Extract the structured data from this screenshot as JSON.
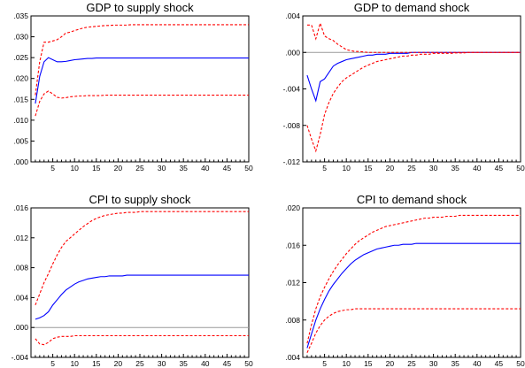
{
  "chart_data": [
    {
      "type": "line",
      "title": "GDP to supply shock",
      "x": [
        1,
        2,
        3,
        4,
        5,
        6,
        7,
        8,
        9,
        10,
        11,
        12,
        13,
        14,
        15,
        16,
        17,
        18,
        19,
        20,
        21,
        22,
        23,
        24,
        25,
        26,
        27,
        28,
        29,
        30,
        31,
        32,
        33,
        34,
        35,
        36,
        37,
        38,
        39,
        40,
        41,
        42,
        43,
        44,
        45,
        46,
        47,
        48,
        49,
        50
      ],
      "xlim": [
        0,
        50
      ],
      "xticks": [
        "5",
        "10",
        "15",
        "20",
        "25",
        "30",
        "35",
        "40",
        "45",
        "50"
      ],
      "ylim": [
        0,
        0.035
      ],
      "yticks": [
        ".000",
        ".005",
        ".010",
        ".015",
        ".020",
        ".025",
        ".030",
        ".035"
      ],
      "series": [
        {
          "color": "#0000ff",
          "style": "solid",
          "values": [
            0.014,
            0.0205,
            0.024,
            0.025,
            0.0245,
            0.024,
            0.024,
            0.0241,
            0.0243,
            0.0245,
            0.0246,
            0.0247,
            0.0248,
            0.0248,
            0.0249,
            0.0249,
            0.0249,
            0.0249,
            0.0249,
            0.0249,
            0.0249,
            0.0249,
            0.0249,
            0.0249,
            0.0249,
            0.0249,
            0.0249,
            0.0249,
            0.0249,
            0.0249,
            0.0249,
            0.0249,
            0.0249,
            0.0249,
            0.0249,
            0.0249,
            0.0249,
            0.0249,
            0.0249,
            0.0249,
            0.0249,
            0.0249,
            0.0249,
            0.0249,
            0.0249,
            0.0249,
            0.0249,
            0.0249,
            0.0249,
            0.0249
          ]
        },
        {
          "color": "#ff0000",
          "style": "dashed",
          "values": [
            0.016,
            0.024,
            0.0287,
            0.0287,
            0.029,
            0.0293,
            0.03,
            0.0309,
            0.0311,
            0.0315,
            0.0318,
            0.0321,
            0.0323,
            0.0324,
            0.0325,
            0.0326,
            0.0327,
            0.0327,
            0.0328,
            0.0328,
            0.0328,
            0.0328,
            0.0329,
            0.0329,
            0.0329,
            0.0329,
            0.0329,
            0.0329,
            0.0329,
            0.0329,
            0.0329,
            0.0329,
            0.0329,
            0.0329,
            0.0329,
            0.0329,
            0.0329,
            0.0329,
            0.0329,
            0.0329,
            0.0329,
            0.0329,
            0.0329,
            0.0329,
            0.0329,
            0.0329,
            0.0329,
            0.0329,
            0.0329,
            0.0329
          ]
        },
        {
          "color": "#ff0000",
          "style": "dashed",
          "values": [
            0.011,
            0.0145,
            0.0163,
            0.017,
            0.0163,
            0.0155,
            0.0153,
            0.0154,
            0.0156,
            0.0157,
            0.0158,
            0.0158,
            0.0159,
            0.0159,
            0.0159,
            0.0159,
            0.016,
            0.016,
            0.016,
            0.016,
            0.016,
            0.016,
            0.016,
            0.016,
            0.016,
            0.016,
            0.016,
            0.016,
            0.016,
            0.016,
            0.016,
            0.016,
            0.016,
            0.016,
            0.016,
            0.016,
            0.016,
            0.016,
            0.016,
            0.016,
            0.016,
            0.016,
            0.016,
            0.016,
            0.016,
            0.016,
            0.016,
            0.016,
            0.016,
            0.016
          ]
        }
      ]
    },
    {
      "type": "line",
      "title": "GDP to demand shock",
      "x": [
        1,
        2,
        3,
        4,
        5,
        6,
        7,
        8,
        9,
        10,
        11,
        12,
        13,
        14,
        15,
        16,
        17,
        18,
        19,
        20,
        21,
        22,
        23,
        24,
        25,
        26,
        27,
        28,
        29,
        30,
        31,
        32,
        33,
        34,
        35,
        36,
        37,
        38,
        39,
        40,
        41,
        42,
        43,
        44,
        45,
        46,
        47,
        48,
        49,
        50
      ],
      "xlim": [
        0,
        50
      ],
      "xticks": [
        "5",
        "10",
        "15",
        "20",
        "25",
        "30",
        "35",
        "40",
        "45",
        "50"
      ],
      "ylim": [
        -0.012,
        0.004
      ],
      "yticks": [
        "-.012",
        "-.008",
        "-.004",
        ".000",
        ".004"
      ],
      "zero_line": true,
      "series": [
        {
          "color": "#0000ff",
          "style": "solid",
          "values": [
            -0.0025,
            -0.004,
            -0.0053,
            -0.0032,
            -0.0029,
            -0.0022,
            -0.0015,
            -0.0012,
            -0.001,
            -0.0008,
            -0.0007,
            -0.0006,
            -0.0005,
            -0.0004,
            -0.0003,
            -0.0003,
            -0.0002,
            -0.0002,
            -0.0002,
            -0.0001,
            -0.0001,
            -0.0001,
            -0.0001,
            -0.0001,
            0,
            0,
            0,
            0,
            0,
            0,
            0,
            0,
            0,
            0,
            0,
            0,
            0,
            0,
            0,
            0,
            0,
            0,
            0,
            0,
            0,
            0,
            0,
            0,
            0,
            0
          ]
        },
        {
          "color": "#ff0000",
          "style": "dashed",
          "values": [
            0.003,
            0.003,
            0.0015,
            0.0032,
            0.0018,
            0.0015,
            0.0013,
            0.0009,
            0.0006,
            0.0003,
            0.0002,
            0.0001,
            0.0001,
            5e-05,
            0,
            0,
            0,
            0,
            0,
            0,
            0,
            0,
            0,
            0,
            0,
            0,
            0,
            0,
            0,
            0,
            0,
            0,
            0,
            0,
            0,
            0,
            0,
            0,
            0,
            0,
            0,
            0,
            0,
            0,
            0,
            0,
            0,
            0,
            0,
            0
          ]
        },
        {
          "color": "#ff0000",
          "style": "dashed",
          "values": [
            -0.008,
            -0.0095,
            -0.0108,
            -0.009,
            -0.0068,
            -0.0055,
            -0.0045,
            -0.0038,
            -0.0032,
            -0.0028,
            -0.0025,
            -0.0022,
            -0.0019,
            -0.0016,
            -0.0014,
            -0.0012,
            -0.001,
            -0.0009,
            -0.0008,
            -0.0007,
            -0.0006,
            -0.0005,
            -0.0004,
            -0.0004,
            -0.0003,
            -0.0003,
            -0.0002,
            -0.0002,
            -0.0002,
            -0.0001,
            -0.0001,
            -0.0001,
            -0.0001,
            -0.0001,
            -5e-05,
            -5e-05,
            -5e-05,
            0,
            0,
            0,
            0,
            0,
            0,
            0,
            0,
            0,
            0,
            0,
            0,
            0
          ]
        }
      ]
    },
    {
      "type": "line",
      "title": "CPI to supply shock",
      "x": [
        1,
        2,
        3,
        4,
        5,
        6,
        7,
        8,
        9,
        10,
        11,
        12,
        13,
        14,
        15,
        16,
        17,
        18,
        19,
        20,
        21,
        22,
        23,
        24,
        25,
        26,
        27,
        28,
        29,
        30,
        31,
        32,
        33,
        34,
        35,
        36,
        37,
        38,
        39,
        40,
        41,
        42,
        43,
        44,
        45,
        46,
        47,
        48,
        49,
        50
      ],
      "xlim": [
        0,
        50
      ],
      "xticks": [
        "5",
        "10",
        "15",
        "20",
        "25",
        "30",
        "35",
        "40",
        "45",
        "50"
      ],
      "ylim": [
        -0.004,
        0.016
      ],
      "yticks": [
        "-.004",
        ".000",
        ".004",
        ".008",
        ".012",
        ".016"
      ],
      "zero_line": true,
      "series": [
        {
          "color": "#0000ff",
          "style": "solid",
          "values": [
            0.0011,
            0.0013,
            0.0016,
            0.0021,
            0.003,
            0.0037,
            0.0044,
            0.005,
            0.0054,
            0.0058,
            0.0061,
            0.0063,
            0.0065,
            0.0066,
            0.0067,
            0.0068,
            0.0068,
            0.0069,
            0.0069,
            0.0069,
            0.0069,
            0.007,
            0.007,
            0.007,
            0.007,
            0.007,
            0.007,
            0.007,
            0.007,
            0.007,
            0.007,
            0.007,
            0.007,
            0.007,
            0.007,
            0.007,
            0.007,
            0.007,
            0.007,
            0.007,
            0.007,
            0.007,
            0.007,
            0.007,
            0.007,
            0.007,
            0.007,
            0.007,
            0.007,
            0.007
          ]
        },
        {
          "color": "#ff0000",
          "style": "dashed",
          "values": [
            0.003,
            0.0045,
            0.006,
            0.0072,
            0.0085,
            0.0097,
            0.0107,
            0.0115,
            0.012,
            0.0125,
            0.013,
            0.0135,
            0.0139,
            0.0143,
            0.0146,
            0.0148,
            0.015,
            0.0151,
            0.0152,
            0.0153,
            0.0153,
            0.0154,
            0.0154,
            0.0154,
            0.0155,
            0.0155,
            0.0155,
            0.0155,
            0.0155,
            0.0155,
            0.0155,
            0.0155,
            0.0155,
            0.0155,
            0.0155,
            0.0155,
            0.0155,
            0.0155,
            0.0155,
            0.0155,
            0.0155,
            0.0155,
            0.0155,
            0.0155,
            0.0155,
            0.0155,
            0.0155,
            0.0155,
            0.0155,
            0.0155
          ]
        },
        {
          "color": "#ff0000",
          "style": "dashed",
          "values": [
            -0.0015,
            -0.0022,
            -0.0023,
            -0.002,
            -0.0015,
            -0.0013,
            -0.0012,
            -0.0012,
            -0.0012,
            -0.0011,
            -0.0011,
            -0.0011,
            -0.0011,
            -0.0011,
            -0.0011,
            -0.0011,
            -0.0011,
            -0.0011,
            -0.0011,
            -0.0011,
            -0.0011,
            -0.0011,
            -0.0011,
            -0.0011,
            -0.0011,
            -0.0011,
            -0.0011,
            -0.0011,
            -0.0011,
            -0.0011,
            -0.0011,
            -0.0011,
            -0.0011,
            -0.0011,
            -0.0011,
            -0.0011,
            -0.0011,
            -0.0011,
            -0.0011,
            -0.0011,
            -0.0011,
            -0.0011,
            -0.0011,
            -0.0011,
            -0.0011,
            -0.0011,
            -0.0011,
            -0.0011,
            -0.0011,
            -0.0011
          ]
        }
      ]
    },
    {
      "type": "line",
      "title": "CPI to demand shock",
      "x": [
        1,
        2,
        3,
        4,
        5,
        6,
        7,
        8,
        9,
        10,
        11,
        12,
        13,
        14,
        15,
        16,
        17,
        18,
        19,
        20,
        21,
        22,
        23,
        24,
        25,
        26,
        27,
        28,
        29,
        30,
        31,
        32,
        33,
        34,
        35,
        36,
        37,
        38,
        39,
        40,
        41,
        42,
        43,
        44,
        45,
        46,
        47,
        48,
        49,
        50
      ],
      "xlim": [
        0,
        50
      ],
      "xticks": [
        "5",
        "10",
        "15",
        "20",
        "25",
        "30",
        "35",
        "40",
        "45",
        "50"
      ],
      "ylim": [
        0.004,
        0.02
      ],
      "yticks": [
        ".004",
        ".008",
        ".012",
        ".016",
        ".020"
      ],
      "series": [
        {
          "color": "#0000ff",
          "style": "solid",
          "values": [
            0.005,
            0.0065,
            0.008,
            0.0092,
            0.0102,
            0.0111,
            0.0118,
            0.0124,
            0.013,
            0.0135,
            0.014,
            0.0144,
            0.0147,
            0.015,
            0.0152,
            0.0154,
            0.0156,
            0.0157,
            0.0158,
            0.0159,
            0.016,
            0.016,
            0.0161,
            0.0161,
            0.0161,
            0.0162,
            0.0162,
            0.0162,
            0.0162,
            0.0162,
            0.0162,
            0.0162,
            0.0162,
            0.0162,
            0.0162,
            0.0162,
            0.0162,
            0.0162,
            0.0162,
            0.0162,
            0.0162,
            0.0162,
            0.0162,
            0.0162,
            0.0162,
            0.0162,
            0.0162,
            0.0162,
            0.0162,
            0.0162
          ]
        },
        {
          "color": "#ff0000",
          "style": "dashed",
          "values": [
            0.0055,
            0.0075,
            0.0092,
            0.0105,
            0.0115,
            0.0124,
            0.0132,
            0.0139,
            0.0145,
            0.0151,
            0.0156,
            0.0161,
            0.0165,
            0.0168,
            0.0171,
            0.0174,
            0.0176,
            0.0178,
            0.018,
            0.0181,
            0.0182,
            0.0183,
            0.0184,
            0.0185,
            0.0186,
            0.0187,
            0.0188,
            0.0189,
            0.0189,
            0.019,
            0.019,
            0.019,
            0.0191,
            0.0191,
            0.0191,
            0.0192,
            0.0192,
            0.0192,
            0.0192,
            0.0192,
            0.0192,
            0.0192,
            0.0192,
            0.0192,
            0.0192,
            0.0192,
            0.0192,
            0.0192,
            0.0192,
            0.0192
          ]
        },
        {
          "color": "#ff0000",
          "style": "dashed",
          "values": [
            0.0045,
            0.0055,
            0.0066,
            0.0074,
            0.008,
            0.0084,
            0.0087,
            0.0089,
            0.009,
            0.0091,
            0.0091,
            0.0092,
            0.0092,
            0.0092,
            0.0092,
            0.0092,
            0.0092,
            0.0092,
            0.0092,
            0.0092,
            0.0092,
            0.0092,
            0.0092,
            0.0092,
            0.0092,
            0.0092,
            0.0092,
            0.0092,
            0.0092,
            0.0092,
            0.0092,
            0.0092,
            0.0092,
            0.0092,
            0.0092,
            0.0092,
            0.0092,
            0.0092,
            0.0092,
            0.0092,
            0.0092,
            0.0092,
            0.0092,
            0.0092,
            0.0092,
            0.0092,
            0.0092,
            0.0092,
            0.0092,
            0.0092
          ]
        }
      ]
    }
  ]
}
